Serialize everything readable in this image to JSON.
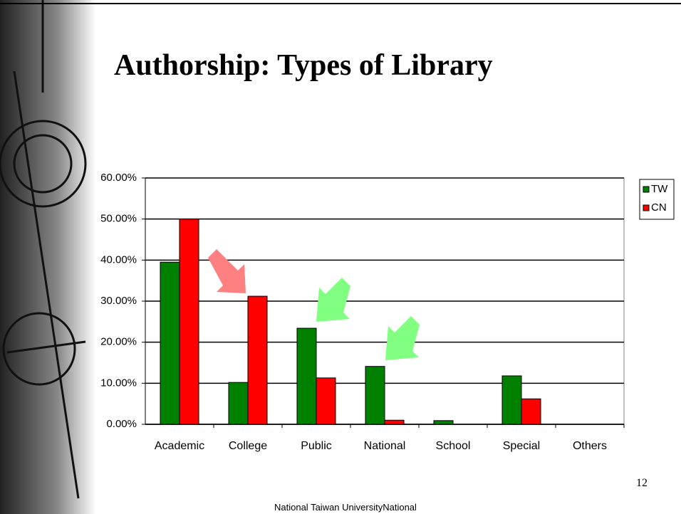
{
  "chart_data": {
    "type": "bar",
    "title": "Authorship: Types of Library",
    "categories": [
      "Academic",
      "College",
      "Public",
      "National",
      "School",
      "Special",
      "Others"
    ],
    "series": [
      {
        "name": "TW",
        "color": "#008000",
        "values": [
          39.5,
          10.2,
          23.4,
          14.1,
          0.9,
          11.8,
          0
        ]
      },
      {
        "name": "CN",
        "color": "#ff0000",
        "values": [
          50,
          31.2,
          11.3,
          1.0,
          0,
          6.2,
          0
        ]
      }
    ],
    "ylim": [
      0,
      60
    ],
    "yticks": [
      {
        "value": 0,
        "label": "0.00%"
      },
      {
        "value": 10,
        "label": "10.00%"
      },
      {
        "value": 20,
        "label": "20.00%"
      },
      {
        "value": 30,
        "label": "30.00%"
      },
      {
        "value": 40,
        "label": "40.00%"
      },
      {
        "value": 50,
        "label": "50.00%"
      },
      {
        "value": 60,
        "label": "60.00%"
      }
    ],
    "grid": true,
    "legend": "right"
  },
  "page_number": "12",
  "footer": "National Taiwan UniversityNational"
}
